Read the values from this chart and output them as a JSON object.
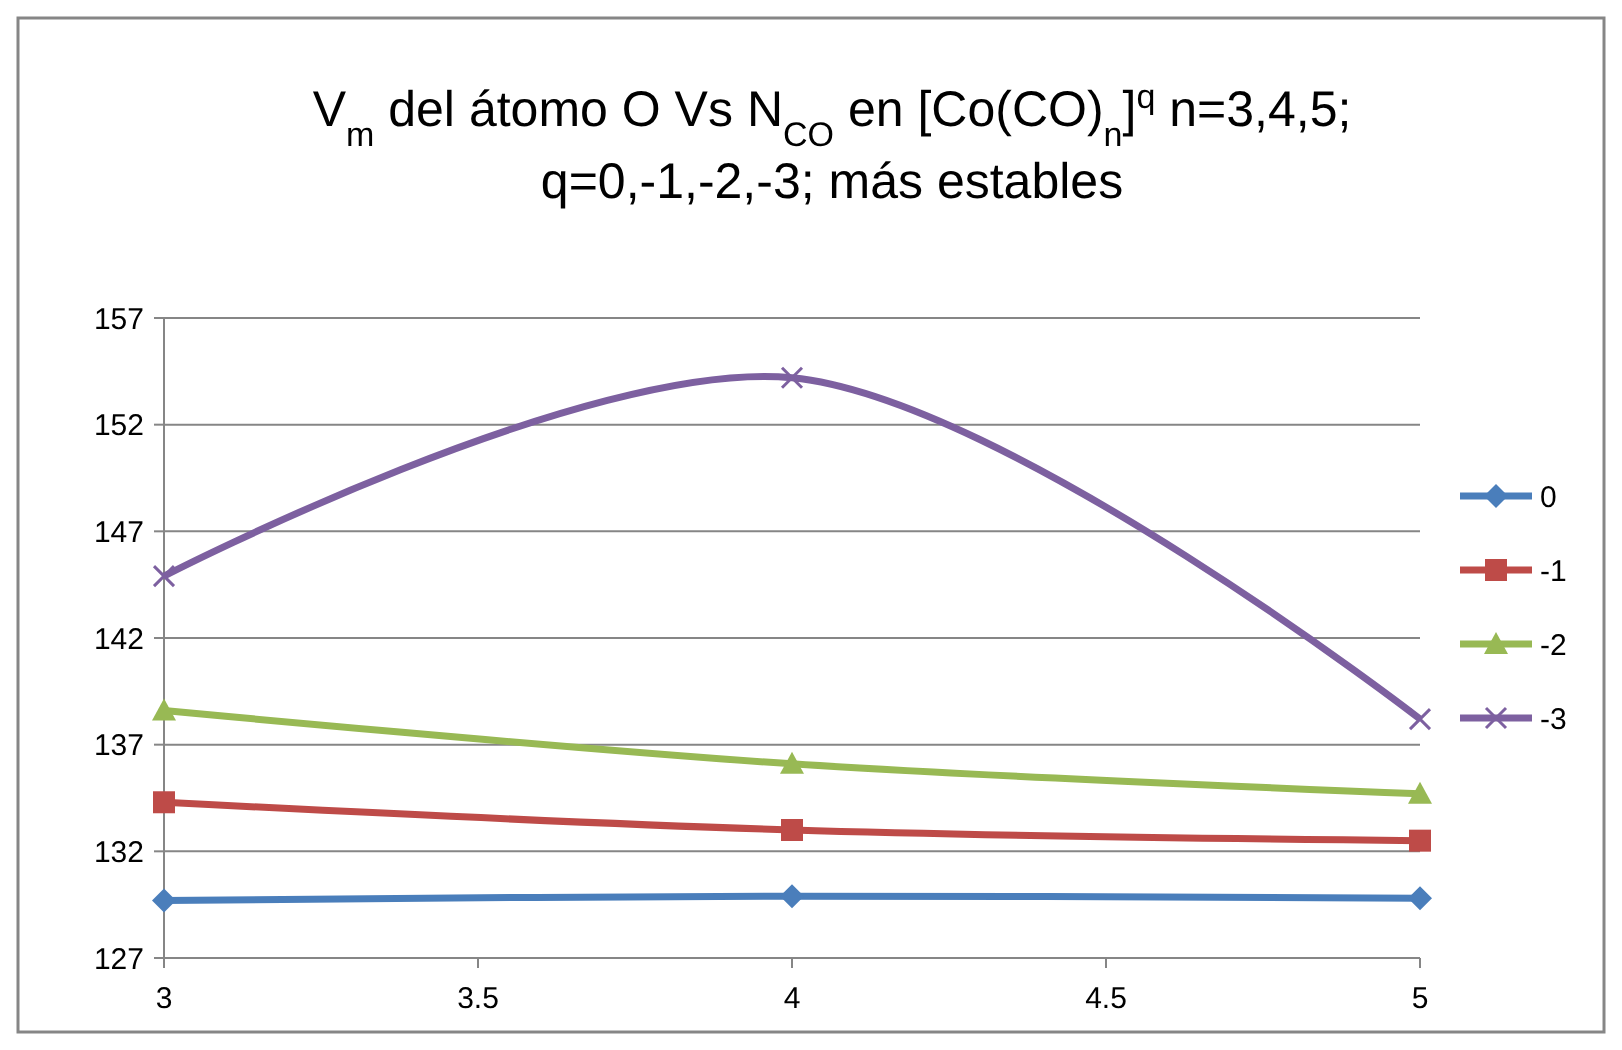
{
  "chart_data": {
    "type": "line",
    "title": "V$_{m}$ del átomo O Vs N$_{CO}$ en [Co(CO)$_{n}$]$^{q}$ n=3,4,5; q=0,-1,-2,-3; más estables",
    "x": [
      3,
      4,
      5
    ],
    "xlim": [
      3,
      5
    ],
    "xticks": [
      3,
      3.5,
      4,
      4.5,
      5
    ],
    "ylim": [
      127,
      157
    ],
    "yticks": [
      127,
      132,
      137,
      142,
      147,
      152,
      157
    ],
    "grid": "y",
    "legend": "right",
    "series": [
      {
        "name": "0",
        "color": "#4a7ebb",
        "marker": "diamond",
        "values": [
          129.7,
          129.9,
          129.8
        ]
      },
      {
        "name": "-1",
        "color": "#be4b48",
        "marker": "square",
        "values": [
          134.3,
          133.0,
          132.5
        ]
      },
      {
        "name": "-2",
        "color": "#98b954",
        "marker": "triangle",
        "values": [
          138.6,
          136.1,
          134.7
        ]
      },
      {
        "name": "-3",
        "color": "#7d60a0",
        "marker": "cross",
        "values": [
          144.9,
          154.2,
          138.2
        ]
      }
    ]
  }
}
